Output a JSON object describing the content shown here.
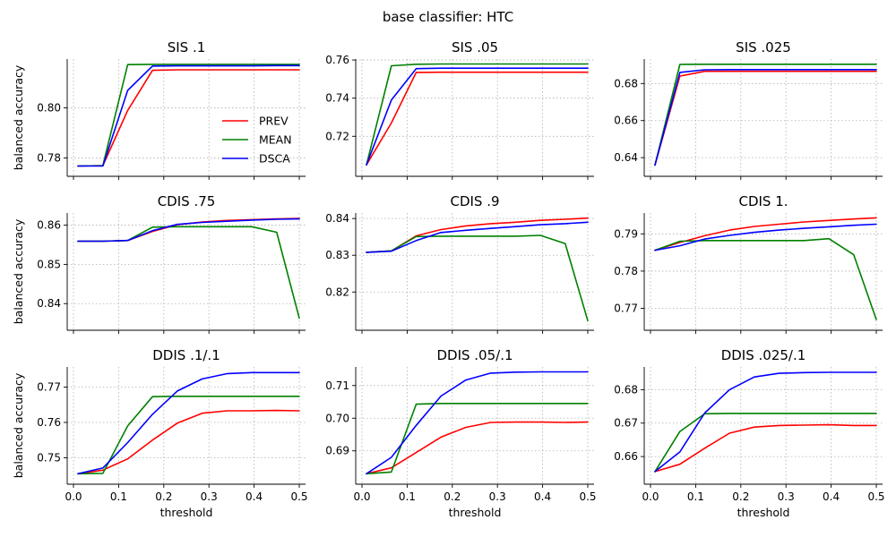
{
  "figure_title": "base classifier: HTC",
  "colors": {
    "PREV": "#ff0000",
    "MEAN": "#008000",
    "DSCA": "#0000ff"
  },
  "chart_data": [
    {
      "type": "line",
      "title": "SIS .1",
      "xlabel": "",
      "ylabel": "balanced accuracy",
      "xlim": [
        0.0,
        0.5
      ],
      "ylim": [
        0.7752,
        0.8195
      ],
      "yticks": [
        0.78,
        0.8
      ],
      "xticks": [
        0.0,
        0.1,
        0.2,
        0.3,
        0.4,
        0.5
      ],
      "show_xtick_labels": false,
      "grid": true,
      "legend": {
        "location": "right",
        "entries": [
          "PREV",
          "MEAN",
          "DSCA"
        ]
      },
      "x": [
        0.01,
        0.065,
        0.12,
        0.175,
        0.23,
        0.285,
        0.34,
        0.395,
        0.45,
        0.5
      ],
      "series": [
        {
          "name": "PREV",
          "values": [
            0.7768,
            0.777,
            0.799,
            0.815,
            0.8152,
            0.8152,
            0.8152,
            0.8152,
            0.8152,
            0.8152
          ]
        },
        {
          "name": "MEAN",
          "values": [
            0.7768,
            0.777,
            0.8173,
            0.8174,
            0.8174,
            0.8174,
            0.8174,
            0.8174,
            0.8174,
            0.8174
          ]
        },
        {
          "name": "DSCA",
          "values": [
            0.7768,
            0.7768,
            0.807,
            0.8167,
            0.8168,
            0.8168,
            0.8168,
            0.8168,
            0.8169,
            0.8169
          ]
        }
      ]
    },
    {
      "type": "line",
      "title": "SIS .05",
      "xlabel": "",
      "ylabel": "",
      "xlim": [
        0.0,
        0.5
      ],
      "ylim": [
        0.7023,
        0.7605
      ],
      "yticks": [
        0.72,
        0.74,
        0.76
      ],
      "xticks": [
        0.0,
        0.1,
        0.2,
        0.3,
        0.4,
        0.5
      ],
      "show_xtick_labels": false,
      "grid": true,
      "x": [
        0.01,
        0.065,
        0.12,
        0.175,
        0.23,
        0.285,
        0.34,
        0.395,
        0.45,
        0.5
      ],
      "series": [
        {
          "name": "PREV",
          "values": [
            0.705,
            0.727,
            0.7535,
            0.7536,
            0.7536,
            0.7536,
            0.7536,
            0.7536,
            0.7536,
            0.7536
          ]
        },
        {
          "name": "MEAN",
          "values": [
            0.705,
            0.757,
            0.7578,
            0.7579,
            0.7579,
            0.7579,
            0.7579,
            0.7579,
            0.7579,
            0.7579
          ]
        },
        {
          "name": "DSCA",
          "values": [
            0.705,
            0.739,
            0.7555,
            0.7557,
            0.7557,
            0.7557,
            0.7557,
            0.7557,
            0.7557,
            0.7557
          ]
        }
      ]
    },
    {
      "type": "line",
      "title": "SIS .025",
      "xlabel": "",
      "ylabel": "",
      "xlim": [
        0.0,
        0.5
      ],
      "ylim": [
        0.6333,
        0.6932
      ],
      "yticks": [
        0.64,
        0.66,
        0.68
      ],
      "xticks": [
        0.0,
        0.1,
        0.2,
        0.3,
        0.4,
        0.5
      ],
      "show_xtick_labels": false,
      "grid": true,
      "x": [
        0.01,
        0.065,
        0.12,
        0.175,
        0.23,
        0.285,
        0.34,
        0.395,
        0.45,
        0.5
      ],
      "series": [
        {
          "name": "PREV",
          "values": [
            0.636,
            0.684,
            0.6866,
            0.6866,
            0.6866,
            0.6866,
            0.6866,
            0.6866,
            0.6866,
            0.6866
          ]
        },
        {
          "name": "MEAN",
          "values": [
            0.636,
            0.6903,
            0.6904,
            0.6904,
            0.6904,
            0.6904,
            0.6904,
            0.6904,
            0.6904,
            0.6904
          ]
        },
        {
          "name": "DSCA",
          "values": [
            0.636,
            0.686,
            0.6874,
            0.6875,
            0.6875,
            0.6875,
            0.6875,
            0.6875,
            0.6875,
            0.6875
          ]
        }
      ]
    },
    {
      "type": "line",
      "title": "CDIS .75",
      "xlabel": "",
      "ylabel": "balanced accuracy",
      "xlim": [
        0.0,
        0.5
      ],
      "ylim": [
        0.8348,
        0.8631
      ],
      "yticks": [
        0.84,
        0.85,
        0.86
      ],
      "xticks": [
        0.0,
        0.1,
        0.2,
        0.3,
        0.4,
        0.5
      ],
      "show_xtick_labels": false,
      "grid": true,
      "x": [
        0.01,
        0.065,
        0.12,
        0.175,
        0.23,
        0.285,
        0.34,
        0.395,
        0.45,
        0.5
      ],
      "series": [
        {
          "name": "PREV",
          "values": [
            0.8559,
            0.8559,
            0.8561,
            0.8584,
            0.8601,
            0.8608,
            0.8612,
            0.8614,
            0.8616,
            0.8617
          ]
        },
        {
          "name": "MEAN",
          "values": [
            0.8559,
            0.8559,
            0.8561,
            0.8595,
            0.8596,
            0.8596,
            0.8596,
            0.8596,
            0.8582,
            0.8363
          ]
        },
        {
          "name": "DSCA",
          "values": [
            0.8559,
            0.8559,
            0.8561,
            0.8586,
            0.8602,
            0.8607,
            0.861,
            0.8613,
            0.8615,
            0.8616
          ]
        }
      ]
    },
    {
      "type": "line",
      "title": "CDIS .9",
      "xlabel": "",
      "ylabel": "",
      "xlim": [
        0.0,
        0.5
      ],
      "ylim": [
        0.8113,
        0.8415
      ],
      "yticks": [
        0.82,
        0.83,
        0.84
      ],
      "xticks": [
        0.0,
        0.1,
        0.2,
        0.3,
        0.4,
        0.5
      ],
      "show_xtick_labels": false,
      "grid": true,
      "x": [
        0.01,
        0.065,
        0.12,
        0.175,
        0.23,
        0.285,
        0.34,
        0.395,
        0.45,
        0.5
      ],
      "series": [
        {
          "name": "PREV",
          "values": [
            0.8308,
            0.8312,
            0.8353,
            0.837,
            0.838,
            0.8386,
            0.839,
            0.8395,
            0.8398,
            0.8401
          ]
        },
        {
          "name": "MEAN",
          "values": [
            0.8308,
            0.8312,
            0.8351,
            0.8352,
            0.8352,
            0.8352,
            0.8352,
            0.8354,
            0.8332,
            0.8122
          ]
        },
        {
          "name": "DSCA",
          "values": [
            0.8308,
            0.8311,
            0.834,
            0.8362,
            0.8368,
            0.8373,
            0.8378,
            0.8383,
            0.8386,
            0.839
          ]
        }
      ]
    },
    {
      "type": "line",
      "title": "CDIS 1.",
      "xlabel": "",
      "ylabel": "",
      "xlim": [
        0.0,
        0.5
      ],
      "ylim": [
        0.7658,
        0.7956
      ],
      "yticks": [
        0.77,
        0.78,
        0.79
      ],
      "xticks": [
        0.0,
        0.1,
        0.2,
        0.3,
        0.4,
        0.5
      ],
      "show_xtick_labels": false,
      "grid": true,
      "x": [
        0.01,
        0.065,
        0.12,
        0.175,
        0.23,
        0.285,
        0.34,
        0.395,
        0.45,
        0.5
      ],
      "series": [
        {
          "name": "PREV",
          "values": [
            0.7856,
            0.7877,
            0.7895,
            0.791,
            0.792,
            0.7926,
            0.7932,
            0.7936,
            0.794,
            0.7943
          ]
        },
        {
          "name": "MEAN",
          "values": [
            0.7856,
            0.788,
            0.7882,
            0.7882,
            0.7882,
            0.7882,
            0.7882,
            0.7887,
            0.7844,
            0.767
          ]
        },
        {
          "name": "DSCA",
          "values": [
            0.7856,
            0.7868,
            0.7886,
            0.7896,
            0.7904,
            0.791,
            0.7915,
            0.7919,
            0.7923,
            0.7926
          ]
        }
      ]
    },
    {
      "type": "line",
      "title": "DDIS .1/.1",
      "xlabel": "threshold",
      "ylabel": "balanced accuracy",
      "xlim": [
        0.0,
        0.5
      ],
      "ylim": [
        0.7443,
        0.7757
      ],
      "yticks": [
        0.75,
        0.76,
        0.77
      ],
      "xticks": [
        0.0,
        0.1,
        0.2,
        0.3,
        0.4,
        0.5
      ],
      "show_xtick_labels": true,
      "grid": true,
      "x": [
        0.01,
        0.065,
        0.12,
        0.175,
        0.23,
        0.285,
        0.34,
        0.395,
        0.45,
        0.5
      ],
      "series": [
        {
          "name": "PREV",
          "values": [
            0.7455,
            0.7465,
            0.7497,
            0.755,
            0.7598,
            0.7626,
            0.7633,
            0.7633,
            0.7634,
            0.7633
          ]
        },
        {
          "name": "MEAN",
          "values": [
            0.7455,
            0.7456,
            0.759,
            0.7673,
            0.7674,
            0.7674,
            0.7674,
            0.7674,
            0.7674,
            0.7674
          ]
        },
        {
          "name": "DSCA",
          "values": [
            0.7455,
            0.7471,
            0.7543,
            0.7623,
            0.7689,
            0.7723,
            0.7738,
            0.7741,
            0.7741,
            0.7741
          ]
        }
      ]
    },
    {
      "type": "line",
      "title": "DDIS .05/.1",
      "xlabel": "threshold",
      "ylabel": "",
      "xlim": [
        0.0,
        0.5
      ],
      "ylim": [
        0.6817,
        0.7157
      ],
      "yticks": [
        0.69,
        0.7,
        0.71
      ],
      "xticks": [
        0.0,
        0.1,
        0.2,
        0.3,
        0.4,
        0.5
      ],
      "show_xtick_labels": true,
      "grid": true,
      "x": [
        0.01,
        0.065,
        0.12,
        0.175,
        0.23,
        0.285,
        0.34,
        0.395,
        0.45,
        0.5
      ],
      "series": [
        {
          "name": "PREV",
          "values": [
            0.683,
            0.6848,
            0.6895,
            0.6942,
            0.6972,
            0.6987,
            0.6988,
            0.6988,
            0.6987,
            0.6988
          ]
        },
        {
          "name": "MEAN",
          "values": [
            0.683,
            0.6835,
            0.7043,
            0.7045,
            0.7045,
            0.7045,
            0.7045,
            0.7045,
            0.7045,
            0.7045
          ]
        },
        {
          "name": "DSCA",
          "values": [
            0.683,
            0.688,
            0.6978,
            0.7068,
            0.7117,
            0.7138,
            0.7141,
            0.7142,
            0.7142,
            0.7142
          ]
        }
      ]
    },
    {
      "type": "line",
      "title": "DDIS .025/.1",
      "xlabel": "threshold",
      "ylabel": "",
      "xlim": [
        0.0,
        0.5
      ],
      "ylim": [
        0.6536,
        0.6868
      ],
      "yticks": [
        0.66,
        0.67,
        0.68
      ],
      "xticks": [
        0.0,
        0.1,
        0.2,
        0.3,
        0.4,
        0.5
      ],
      "show_xtick_labels": true,
      "grid": true,
      "x": [
        0.01,
        0.065,
        0.12,
        0.175,
        0.23,
        0.285,
        0.34,
        0.395,
        0.45,
        0.5
      ],
      "series": [
        {
          "name": "PREV",
          "values": [
            0.6555,
            0.6577,
            0.6625,
            0.667,
            0.6688,
            0.6693,
            0.6694,
            0.6695,
            0.6693,
            0.6693
          ]
        },
        {
          "name": "MEAN",
          "values": [
            0.6555,
            0.6675,
            0.6728,
            0.6729,
            0.6729,
            0.6729,
            0.6729,
            0.6729,
            0.6729,
            0.6729
          ]
        },
        {
          "name": "DSCA",
          "values": [
            0.6555,
            0.6614,
            0.673,
            0.68,
            0.6838,
            0.6849,
            0.6851,
            0.6852,
            0.6852,
            0.6852
          ]
        }
      ]
    }
  ]
}
